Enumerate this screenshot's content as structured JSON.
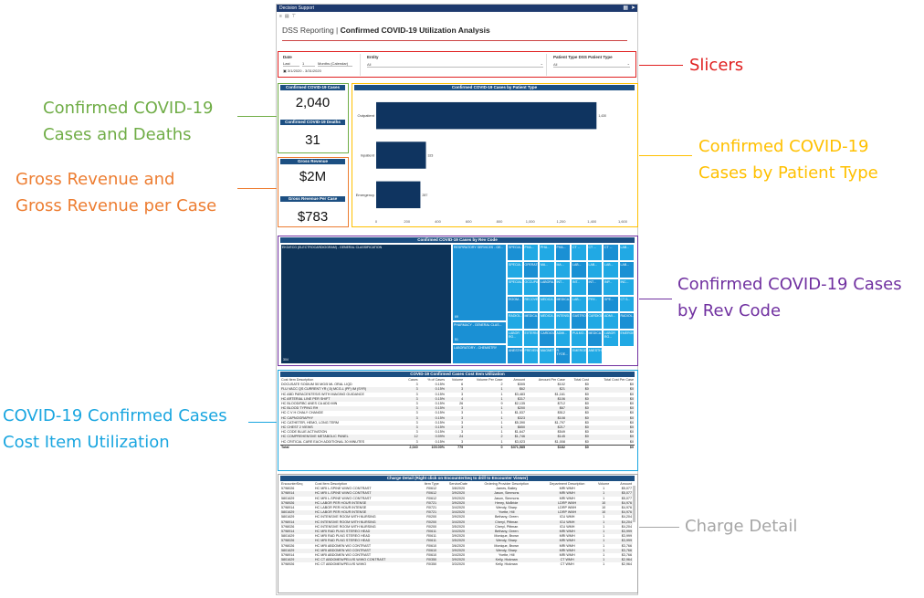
{
  "app": {
    "window_title": "Decision Support",
    "report_prefix": "DSS Reporting | ",
    "report_title": "Confirmed COVID-19 Utilization Analysis"
  },
  "slicers": {
    "date": {
      "label": "Date",
      "mode": "Last",
      "count": "1",
      "unit": "Months (Calendar)",
      "range": "3/1/2020 - 3/31/2020"
    },
    "entity": {
      "label": "Entity",
      "value": "All"
    },
    "patient_type": {
      "label": "Patient Type DSS Patient Type",
      "value": "All"
    }
  },
  "cards": {
    "cases_label": "Confirmed COVID-19 Cases",
    "cases_value": "2,040",
    "deaths_label": "Confirmed COVID-19 Deaths",
    "deaths_value": "31",
    "gross_label": "Gross Revenue",
    "gross_value": "$2M",
    "per_case_label": "Gross Revenue Per Case",
    "per_case_value": "$783"
  },
  "chart_data": {
    "type": "bar",
    "orientation": "horizontal",
    "title": "Confirmed COVID-19 Cases by Patient Type",
    "categories": [
      "Outpatient",
      "Inpatient",
      "Emergency"
    ],
    "values": [
      1430,
      323,
      287
    ],
    "xlim": [
      0,
      1600
    ],
    "ticks": [
      "0",
      "200",
      "400",
      "600",
      "800",
      "1,000",
      "1,200",
      "1,400",
      "1,600"
    ],
    "color": "#0f3460"
  },
  "treemap": {
    "title": "Confirmed COVID-19 Cases by Rev Code",
    "big_label": "EKG/ECG (ELECTROCARDIOGRAM) - GENERAL CLASSIFICATION",
    "big_value": "304",
    "mid": [
      {
        "label": "RESPIRATORY SERVICES - GE...",
        "value": "69"
      },
      {
        "label": "PHARMACY - GENERAL CLAS...",
        "value": "51"
      },
      {
        "label": "LABORATORY - CHEMISTRY",
        "value": ""
      }
    ],
    "small": [
      "SPECIA...",
      "PHA...",
      "PHA...",
      "PHA...",
      "CT ...",
      "CT ...",
      "CT ...",
      "LAB...",
      "SPECIA...",
      "OPERATI...",
      "MA...",
      "MA...",
      "LAB...",
      "LAB...",
      "LAB...",
      "LAB...",
      "SPECIAL...",
      "OCCUPAT...",
      "LABORA...",
      "INT...",
      "INT...",
      "INT...",
      "INP...",
      "INC...",
      "ROOM...",
      "RECOVE...",
      "MEDICA...",
      "MEDICA...",
      "LAB...",
      "PHY...",
      "SPE...",
      "CT S...",
      "RADIOL...",
      "MEDICA...",
      "MEDICA...",
      "INTENSI...",
      "GASTRO...",
      "CARDIOLO...",
      "ADMI...",
      "RADIOL...",
      "LABOR RO...",
      "EXTERN...",
      "CARDIOLO...",
      "ADMI...",
      "PULMO...",
      "MEDICA...",
      "LABOR RO...",
      "EMERGE...",
      "ANESTHES...",
      "PREVEN...",
      "MAGNETI...",
      "R. TYOE...",
      "EMERGE...",
      "ANESTHES..."
    ]
  },
  "cost_table": {
    "title": "COVID-19 Confirmed Cases Cost Item Utilization",
    "columns": [
      "Cost Item Description",
      "Cases",
      "% of Cases",
      "Volume",
      "Volume Per Case",
      "Amount",
      "Amount Per Case",
      "Total Cost",
      "Total Cost Per Case"
    ],
    "rows": [
      [
        "DOCUSATE SODIUM 50 MG/5 ML ORAL LIQD",
        "3",
        "0.15%",
        "6",
        "2",
        "$305",
        "$102",
        "$0",
        "$0"
      ],
      [
        "FLU VACC QS CURRENT YR (.5) MCG-L (PF) IM (SYR)",
        "3",
        "0.15%",
        "3",
        "1",
        "$62",
        "$21",
        "$0",
        "$0"
      ],
      [
        "HC ABD PARACENTESIS WITH IMAGING GUIDANCE",
        "3",
        "0.15%",
        "3",
        "1",
        "$3,483",
        "$1,161",
        "$0",
        "$0"
      ],
      [
        "HC ARTERIAL LINE PER SHIFT",
        "3",
        "0.15%",
        "4",
        "1",
        "$317",
        "$106",
        "$0",
        "$0"
      ],
      [
        "HC BLOOD/RBC ANES CA ADD MIN",
        "3",
        "0.15%",
        "26",
        "9",
        "$2,135",
        "$712",
        "$0",
        "$0"
      ],
      [
        "HC BLOOD TYPING RH",
        "3",
        "0.15%",
        "3",
        "1",
        "$200",
        "$67",
        "$0",
        "$0"
      ],
      [
        "HC C V H CHALY CHANGE",
        "3",
        "0.15%",
        "3",
        "1",
        "$1,537",
        "$512",
        "$0",
        "$0"
      ],
      [
        "HC CAPNOGRAPHY",
        "3",
        "0.15%",
        "3",
        "1",
        "$323",
        "$108",
        "$0",
        "$0"
      ],
      [
        "HC CATHETER, HEMO, LONG TERM",
        "3",
        "0.15%",
        "3",
        "1",
        "$5,390",
        "$1,797",
        "$0",
        "$0"
      ],
      [
        "HC CHEST 2 VIEWS",
        "3",
        "0.15%",
        "3",
        "1",
        "$650",
        "$217",
        "$0",
        "$0"
      ],
      [
        "HC CODE BLUE ACTIVATION",
        "3",
        "0.15%",
        "3",
        "1",
        "$1,647",
        "$549",
        "$0",
        "$0"
      ],
      [
        "HC COMPREHENSIVE METABOLIC PANEL",
        "12",
        "0.59%",
        "24",
        "2",
        "$1,746",
        "$145",
        "$0",
        "$0"
      ],
      [
        "HC CRITICAL CARE EACH ADDITIONAL 30 MINUTES",
        "3",
        "0.15%",
        "3",
        "1",
        "$3,023",
        "$1,008",
        "$0",
        "$0"
      ]
    ],
    "total": [
      "Total",
      "2,040",
      "100.00%",
      "779",
      "0",
      "$371,585",
      "$182",
      "$0",
      "$0"
    ]
  },
  "charge_table": {
    "title": "Charge Detail (Right click on EncounterSeq to drill to Encounter Viewer)",
    "columns": [
      "EncounterSeq",
      "Cost Item Description",
      "Item Type",
      "ServiceDate",
      "Ordering Provider Description",
      "Department Description",
      "Volume",
      "Amount"
    ],
    "rows": [
      [
        "5798026",
        "HC MRI L-SPINE W/WO CONTRAST",
        "R0612",
        "3/8/2020",
        "James, Bailey",
        "MRI WMH",
        "1",
        "$5,077"
      ],
      [
        "5798914",
        "HC MRI L-SPINE W/WO CONTRAST",
        "R0612",
        "3/9/2020",
        "Jason, Simmons",
        "MRI WMH",
        "1",
        "$5,077"
      ],
      [
        "5801629",
        "HC MRI L-SPINE W/WO CONTRAST",
        "R0612",
        "3/9/2020",
        "Jason, Simmons",
        "MRI WMH",
        "1",
        "$5,077"
      ],
      [
        "5798926",
        "HC LABOR PER HOUR INTENSE",
        "R0721",
        "3/9/2020",
        "Henry, McBride",
        "LDRP WMH",
        "10",
        "$4,976"
      ],
      [
        "5798914",
        "HC LABOR PER HOUR INTENSE",
        "R0721",
        "3/4/2020",
        "Wendy, Sharp",
        "LDRP WMH",
        "10",
        "$4,976"
      ],
      [
        "5801629",
        "HC LABOR PER HOUR INTENSE",
        "R0721",
        "3/4/2020",
        "Yvette, Hill",
        "LDRP WMH",
        "10",
        "$4,976"
      ],
      [
        "5801629",
        "HC INTENSIVE ROOM WITH NURSING",
        "R0200",
        "3/9/2020",
        "Bethany, Green",
        "ICU WMH",
        "1",
        "$4,204"
      ],
      [
        "5798914",
        "HC INTENSIVE ROOM WITH NURSING",
        "R0200",
        "3/4/2020",
        "Cheryl, Pittman",
        "ICU WMH",
        "1",
        "$4,204"
      ],
      [
        "5798026",
        "HC INTENSIVE ROOM WITH NURSING",
        "R0200",
        "3/5/2020",
        "Cheryl, Pittman",
        "ICU WMH",
        "1",
        "$4,204"
      ],
      [
        "5798914",
        "HC MRI RAD PLNG STEREO HEAD",
        "R0611",
        "3/4/2020",
        "Bethany, Green",
        "MRI WMH",
        "1",
        "$3,999"
      ],
      [
        "5801629",
        "HC MRI RAD PLNG STEREO HEAD",
        "R0611",
        "3/9/2020",
        "Monique, Brown",
        "MRI WMH",
        "1",
        "$3,999"
      ],
      [
        "5798026",
        "HC MRI RAD PLNG STEREO HEAD",
        "R0611",
        "3/5/2020",
        "Wendy, Sharp",
        "MRI WMH",
        "1",
        "$3,999"
      ],
      [
        "5798026",
        "HC MRI ABDOMEN WO CONTRAST",
        "R0610",
        "3/6/2020",
        "Monique, Brown",
        "MRI WMH",
        "1",
        "$3,766"
      ],
      [
        "5801629",
        "HC MRI ABDOMEN WO CONTRAST",
        "R0610",
        "3/9/2020",
        "Wendy, Sharp",
        "MRI WMH",
        "1",
        "$3,766"
      ],
      [
        "5798914",
        "HC MRI ABDOMEN WO CONTRAST",
        "R0610",
        "3/4/2020",
        "Yvette, Hill",
        "MRI WMH",
        "1",
        "$3,766"
      ],
      [
        "5801629",
        "HC CT ABDOMEN/PELVIS W/WO CONTRAST",
        "R0350",
        "3/9/2020",
        "Kelly, Hickman",
        "CT WMH",
        "1",
        "$2,964"
      ],
      [
        "5798926",
        "HC CT ABDOMEN/PELVIS W/WO",
        "R0350",
        "3/3/2020",
        "Kelly, Hickman",
        "CT WMH",
        "1",
        "$2,964"
      ]
    ]
  },
  "annotations": {
    "slicers": "Slicers",
    "cases_deaths": [
      "Confirmed COVID-19",
      "Cases and Deaths"
    ],
    "gross": [
      "Gross Revenue and",
      "Gross Revenue per Case"
    ],
    "patient_type": [
      "Confirmed COVID-19",
      "Cases by Patient Type"
    ],
    "rev_code": [
      "Confirmed COVID-19 Cases",
      "by Rev Code"
    ],
    "cost_item": [
      "COVID-19 Confirmed Cases",
      "Cost Item Utilization"
    ],
    "charge_detail": "Charge Detail",
    "colors": {
      "slicers": "#e02020",
      "cases": "#70ad47",
      "gross": "#ed7d31",
      "patient": "#ffc000",
      "rev": "#7030a0",
      "cost": "#1aa6e0",
      "charge": "#a6a6a6"
    }
  }
}
